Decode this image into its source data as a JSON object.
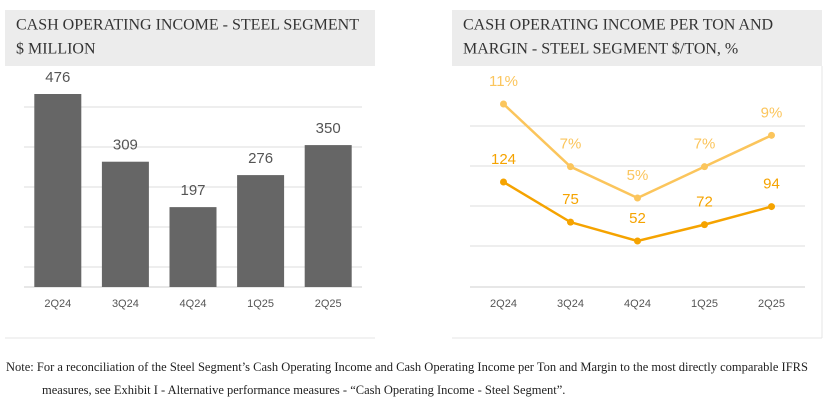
{
  "chart_data": [
    {
      "type": "bar",
      "title": "CASH OPERATING INCOME - STEEL SEGMENT",
      "subtitle": "$ MILLION",
      "categories": [
        "2Q24",
        "3Q24",
        "4Q24",
        "1Q25",
        "2Q25"
      ],
      "values": [
        476,
        309,
        197,
        276,
        350
      ],
      "color": "#666666",
      "grid": true
    },
    {
      "type": "line",
      "title": "CASH OPERATING INCOME PER TON AND",
      "subtitle": "MARGIN - STEEL SEGMENT $/TON, %",
      "categories": [
        "2Q24",
        "3Q24",
        "4Q24",
        "1Q25",
        "2Q25"
      ],
      "grid": true,
      "series": [
        {
          "color": "#f5a300",
          "values": [
            124,
            75,
            52,
            72,
            94
          ]
        },
        {
          "color": "#fbc55c",
          "values": [
            11,
            7,
            5,
            7,
            9
          ],
          "value_labels": [
            "11%",
            "7%",
            "5%",
            "7%",
            "9%"
          ]
        }
      ]
    }
  ],
  "note": "Note: For a reconciliation of the Steel Segment’s Cash Operating Income and Cash Operating Income per Ton and Margin to the most directly comparable IFRS measures, see Exhibit I - Alternative performance measures - “Cash Operating Income - Steel Segment”."
}
